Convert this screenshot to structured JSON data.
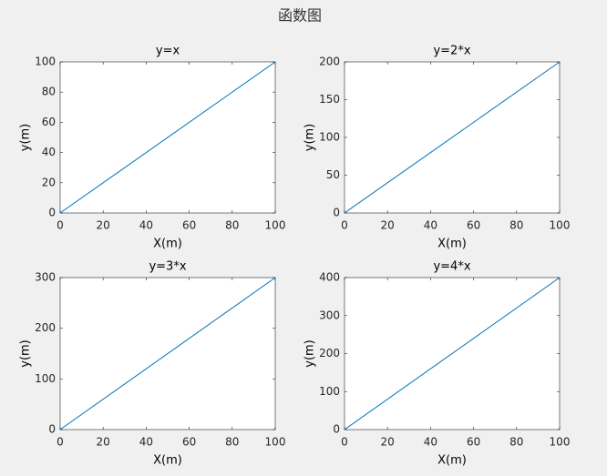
{
  "title": "函数图",
  "chart_data": [
    {
      "type": "line",
      "title": "y=x",
      "xlabel": "X(m)",
      "ylabel": "y(m)",
      "x": [
        0,
        100
      ],
      "values": [
        0,
        100
      ],
      "color": "#0072bd",
      "xlim": [
        0,
        100
      ],
      "xticks": [
        0,
        20,
        40,
        60,
        80,
        100
      ],
      "ylim": [
        0,
        100
      ],
      "yticks": [
        0,
        20,
        40,
        60,
        80,
        100
      ]
    },
    {
      "type": "line",
      "title": "y=2*x",
      "xlabel": "X(m)",
      "ylabel": "y(m)",
      "x": [
        0,
        100
      ],
      "values": [
        0,
        200
      ],
      "color": "#0072bd",
      "xlim": [
        0,
        100
      ],
      "xticks": [
        0,
        20,
        40,
        60,
        80,
        100
      ],
      "ylim": [
        0,
        200
      ],
      "yticks": [
        0,
        50,
        100,
        150,
        200
      ]
    },
    {
      "type": "line",
      "title": "y=3*x",
      "xlabel": "X(m)",
      "ylabel": "y(m)",
      "x": [
        0,
        100
      ],
      "values": [
        0,
        300
      ],
      "color": "#0072bd",
      "xlim": [
        0,
        100
      ],
      "xticks": [
        0,
        20,
        40,
        60,
        80,
        100
      ],
      "ylim": [
        0,
        300
      ],
      "yticks": [
        0,
        100,
        200,
        300
      ]
    },
    {
      "type": "line",
      "title": "y=4*x",
      "xlabel": "X(m)",
      "ylabel": "y(m)",
      "x": [
        0,
        100
      ],
      "values": [
        0,
        400
      ],
      "color": "#0072bd",
      "xlim": [
        0,
        100
      ],
      "xticks": [
        0,
        20,
        40,
        60,
        80,
        100
      ],
      "ylim": [
        0,
        400
      ],
      "yticks": [
        0,
        100,
        200,
        300,
        400
      ]
    }
  ]
}
